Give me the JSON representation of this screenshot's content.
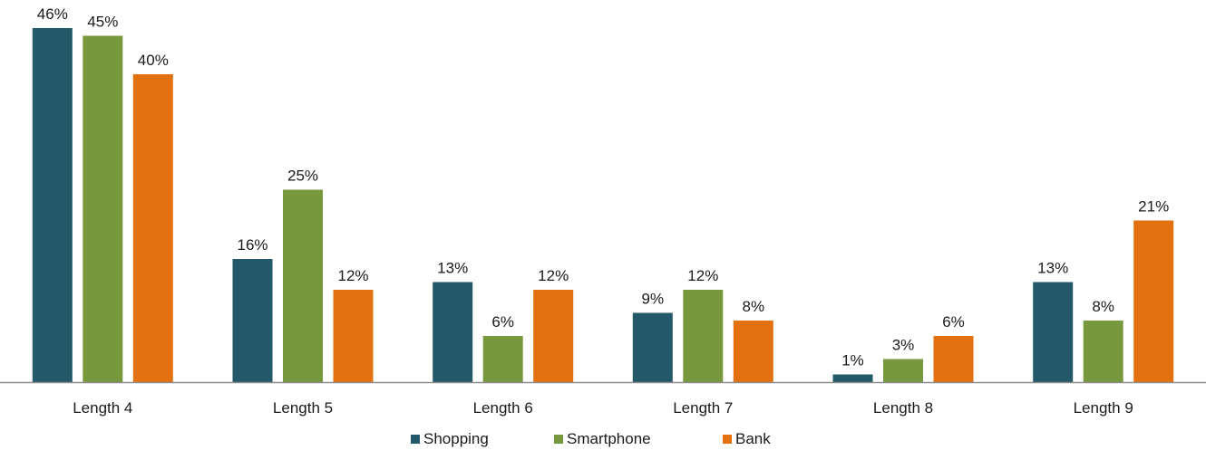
{
  "chart_data": {
    "type": "bar",
    "title": "",
    "xlabel": "",
    "ylabel": "",
    "ylim": [
      0,
      46
    ],
    "grid": false,
    "legend_position": "bottom",
    "categories": [
      "Length 4",
      "Length 5",
      "Length 6",
      "Length 7",
      "Length 8",
      "Length 9"
    ],
    "series": [
      {
        "name": "Shopping",
        "color": "#235968",
        "values": [
          46,
          16,
          13,
          9,
          1,
          13
        ]
      },
      {
        "name": "Smartphone",
        "color": "#77983C",
        "values": [
          45,
          25,
          6,
          12,
          3,
          8
        ]
      },
      {
        "name": "Bank",
        "color": "#E3710F",
        "values": [
          40,
          12,
          12,
          8,
          6,
          21
        ]
      }
    ],
    "value_suffix": "%"
  }
}
